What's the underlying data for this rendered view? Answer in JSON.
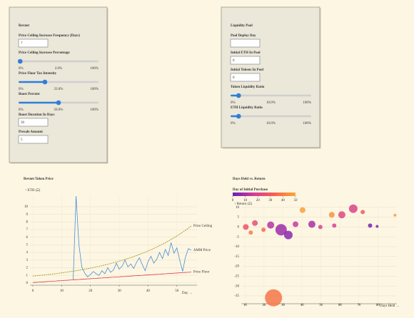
{
  "panels": [
    {
      "title": "Revnet",
      "fields": [
        {
          "label": "Price Ceiling Increase Frequency (Days)",
          "input": "7"
        },
        {
          "label": "Price Ceiling Increase Percentage",
          "slider": {
            "min": {
              "value": 0,
              "label": "0%"
            },
            "value": {
              "value": 2,
              "label": "2.0%"
            },
            "max": {
              "value": 100,
              "label": "100%"
            }
          }
        },
        {
          "label": "Price Floor Tax Intensity",
          "slider": {
            "min": {
              "value": 0,
              "label": "0%"
            },
            "value": {
              "value": 33,
              "label": "33.0%"
            },
            "max": {
              "value": 100,
              "label": "100%"
            }
          }
        },
        {
          "label": "Boost Percent",
          "slider": {
            "min": {
              "value": 0,
              "label": "0%"
            },
            "value": {
              "value": 50,
              "label": "50.0%"
            },
            "max": {
              "value": 100,
              "label": "100%"
            }
          }
        },
        {
          "label": "Boost Duration In Days",
          "input": "30"
        },
        {
          "label": "Presale Amount",
          "input": "5"
        }
      ]
    },
    {
      "title": "Liquidity Pool",
      "fields": [
        {
          "label": "Pool Deploy Day"
        },
        {
          "label": "Initial ETH In Pool",
          "input": "0"
        },
        {
          "label": "Initial Tokens In Pool",
          "input": "0"
        },
        {
          "label": "Token Liquidity Ratio",
          "slider": {
            "min": {
              "value": 0,
              "label": "0%"
            },
            "value": {
              "value": 10,
              "label": "10.0%"
            },
            "max": {
              "value": 100,
              "label": "100%"
            }
          }
        },
        {
          "label": "ETH Liquidity Ratio",
          "slider": {
            "min": {
              "value": 0,
              "label": "0%"
            },
            "value": {
              "value": 10,
              "label": "10.0%"
            },
            "max": {
              "value": 100,
              "label": "100%"
            }
          }
        }
      ]
    }
  ],
  "chart_data": [
    {
      "type": "line",
      "title": "Revnet Token Price",
      "y_label": "↑ ETH (Ξ)",
      "x_label": "Day →",
      "x": [
        0,
        1,
        2,
        3,
        4,
        5,
        6,
        7,
        8,
        9,
        10,
        11,
        12,
        13,
        14,
        15,
        16,
        17,
        18,
        19,
        20,
        21,
        22,
        23,
        24,
        25,
        26,
        27,
        28,
        29,
        30,
        31,
        32,
        33,
        34,
        35,
        36,
        37,
        38,
        39,
        40,
        41,
        42,
        43,
        44,
        45,
        46,
        47,
        48,
        49,
        50,
        51,
        52,
        53,
        54,
        55
      ],
      "series": [
        {
          "name": "Price Ceiling",
          "color": "#a9a230",
          "values": [
            0.9,
            0.94,
            0.97,
            1.01,
            1.05,
            1.09,
            1.13,
            1.18,
            1.22,
            1.27,
            1.32,
            1.37,
            1.43,
            1.49,
            1.54,
            1.6,
            1.67,
            1.73,
            1.8,
            1.87,
            1.94,
            2.02,
            2.1,
            2.18,
            2.27,
            2.36,
            2.45,
            2.55,
            2.65,
            2.75,
            2.86,
            2.97,
            3.09,
            3.21,
            3.33,
            3.46,
            3.6,
            3.74,
            3.89,
            4.04,
            4.2,
            4.36,
            4.53,
            4.71,
            4.9,
            5.09,
            5.29,
            5.49,
            5.71,
            5.93,
            6.17,
            6.41,
            6.66,
            6.92,
            7.19,
            7.47
          ]
        },
        {
          "name": "AMM Price",
          "color": "#4a8fd4",
          "values": [
            null,
            null,
            null,
            null,
            null,
            null,
            null,
            null,
            null,
            null,
            null,
            null,
            null,
            null,
            0.4,
            11.4,
            5,
            2.1,
            1.3,
            0.8,
            1.1,
            1.5,
            1.2,
            1.0,
            1.6,
            1.2,
            2.0,
            1.4,
            1.7,
            2.6,
            1.8,
            2.2,
            3.0,
            2.1,
            2.5,
            1.9,
            2.7,
            3.3,
            2.4,
            1.6,
            2.8,
            3.5,
            2.6,
            3.1,
            4.0,
            3.2,
            4.4,
            3.6,
            5.3,
            3.9,
            4.6,
            3.0,
            1.5,
            3.4,
            4.5,
            4.3
          ]
        },
        {
          "name": "Price Floor",
          "color": "#d9363e",
          "values": [
            0.05,
            0.08,
            0.1,
            0.13,
            0.15,
            0.18,
            0.2,
            0.23,
            0.25,
            0.28,
            0.3,
            0.33,
            0.35,
            0.38,
            0.4,
            0.43,
            0.45,
            0.48,
            0.5,
            0.53,
            0.55,
            0.58,
            0.6,
            0.63,
            0.65,
            0.68,
            0.7,
            0.73,
            0.75,
            0.78,
            0.8,
            0.83,
            0.85,
            0.88,
            0.9,
            0.93,
            0.95,
            0.98,
            1.0,
            1.03,
            1.05,
            1.08,
            1.1,
            1.13,
            1.15,
            1.18,
            1.2,
            1.23,
            1.25,
            1.28,
            1.3,
            1.33,
            1.35,
            1.38,
            1.4,
            1.43
          ]
        }
      ],
      "xlim": [
        -1,
        57
      ],
      "xticks": [
        0,
        10,
        20,
        30,
        40,
        50
      ],
      "ylim": [
        -0.3,
        11.5
      ],
      "yticks": [
        0,
        1,
        2,
        3,
        4,
        5,
        6,
        7,
        8,
        9,
        10
      ],
      "grid": true
    },
    {
      "type": "scatter",
      "title": "Days Held vs. Return",
      "y_label": "↑ Return (Ξ)",
      "x_label": "Days Held →",
      "color_title": "Day of Initial Purchase",
      "colorscale": [
        "#6a1fb5",
        "#d23c9a",
        "#f5614f",
        "#f9a93a"
      ],
      "color_range": [
        0,
        50
      ],
      "color_ticks": [
        0,
        10,
        20,
        30,
        40,
        50
      ],
      "x": [
        25,
        67,
        40.3,
        55.7,
        89,
        29,
        32.8,
        23.5,
        15.2,
        10.4,
        19.7,
        13,
        36.6,
        45.2,
        49.7,
        57,
        75.9,
        79.6,
        61,
        72
      ],
      "values": [
        -36,
        9.3,
        8.6,
        6.2,
        6,
        -1.4,
        -4.1,
        1,
        2,
        0,
        -1.4,
        -2.8,
        1.4,
        1.4,
        0,
        0.7,
        0.7,
        0.3,
        6.2,
        7.6
      ],
      "sizes": [
        12,
        6,
        4,
        4,
        2,
        8,
        6,
        5,
        4,
        4,
        3,
        3,
        4,
        5,
        3,
        3,
        3,
        2,
        5,
        3
      ],
      "days": [
        38,
        20,
        48,
        45,
        47,
        8,
        5,
        12,
        25,
        28,
        35,
        40,
        15,
        10,
        20,
        18,
        2,
        3,
        22,
        30
      ],
      "xlim": [
        8,
        90
      ],
      "xticks": [
        10,
        20,
        30,
        40,
        50,
        60,
        70,
        80
      ],
      "ylim": [
        -39,
        11
      ],
      "yticks": [
        10,
        5,
        0,
        -5,
        -10,
        -15,
        -20,
        -25,
        -30,
        -35
      ],
      "grid": true
    }
  ]
}
